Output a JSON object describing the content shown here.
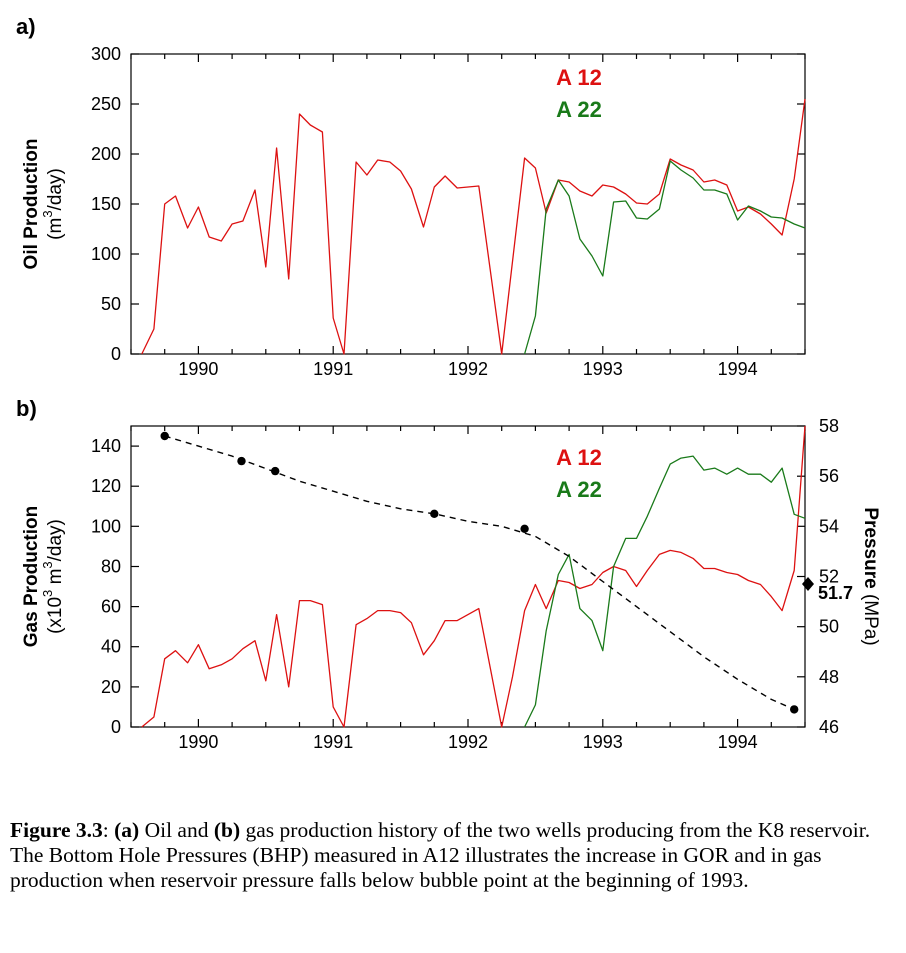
{
  "colors": {
    "a12": "#dd1111",
    "a22": "#1a7a1a",
    "pressure": "#000000",
    "frame": "#000000"
  },
  "chart_data": [
    {
      "type": "line",
      "panel_label": "a)",
      "ylabel_main": "Oil Production",
      "ylabel_unit_pre": "(m",
      "ylabel_unit_sup": "3",
      "ylabel_unit_post": "/day)",
      "xlim": [
        1989.5,
        1994.5
      ],
      "ylim": [
        0,
        300
      ],
      "yticks": [
        0,
        50,
        100,
        150,
        200,
        250,
        300
      ],
      "xticks": [
        1990,
        1991,
        1992,
        1993,
        1994
      ],
      "legend": [
        "A 12",
        "A 22"
      ],
      "legend_position": "top-center",
      "series": [
        {
          "name": "A 12",
          "x": [
            1989.58,
            1989.67,
            1989.75,
            1989.83,
            1989.92,
            1990.0,
            1990.08,
            1990.17,
            1990.25,
            1990.33,
            1990.42,
            1990.5,
            1990.58,
            1990.67,
            1990.75,
            1990.83,
            1990.92,
            1991.0,
            1991.08,
            1991.17,
            1991.25,
            1991.33,
            1991.42,
            1991.5,
            1991.58,
            1991.67,
            1991.75,
            1991.83,
            1991.92,
            1992.0,
            1992.08,
            1992.25,
            1992.42,
            1992.5,
            1992.58,
            1992.67,
            1992.75,
            1992.83,
            1992.92,
            1993.0,
            1993.08,
            1993.17,
            1993.25,
            1993.33,
            1993.42,
            1993.5,
            1993.58,
            1993.67,
            1993.75,
            1993.83,
            1993.92,
            1994.0,
            1994.08,
            1994.17,
            1994.25,
            1994.33,
            1994.42,
            1994.5
          ],
          "values": [
            0,
            25,
            150,
            158,
            126,
            147,
            117,
            113,
            130,
            133,
            164,
            87,
            206,
            75,
            240,
            229,
            222,
            36,
            0,
            192,
            179,
            194,
            192,
            183,
            165,
            127,
            167,
            178,
            166,
            167,
            168,
            0,
            196,
            186,
            141,
            174,
            172,
            163,
            158,
            169,
            167,
            160,
            151,
            150,
            160,
            195,
            189,
            184,
            172,
            174,
            169,
            143,
            147,
            140,
            130,
            119,
            175,
            255
          ]
        },
        {
          "name": "A 22",
          "x": [
            1992.42,
            1992.5,
            1992.58,
            1992.67,
            1992.75,
            1992.83,
            1992.92,
            1993.0,
            1993.08,
            1993.17,
            1993.25,
            1993.33,
            1993.42,
            1993.5,
            1993.58,
            1993.67,
            1993.75,
            1993.83,
            1993.92,
            1994.0,
            1994.08,
            1994.17,
            1994.25,
            1994.33,
            1994.42,
            1994.5
          ],
          "values": [
            0,
            38,
            145,
            174,
            158,
            115,
            98,
            78,
            152,
            153,
            136,
            135,
            145,
            193,
            184,
            176,
            164,
            164,
            160,
            134,
            148,
            143,
            137,
            136,
            130,
            126
          ]
        }
      ]
    },
    {
      "type": "line",
      "panel_label": "b)",
      "ylabel_main": "Gas Production",
      "ylabel_unit_pre": "(x10",
      "ylabel_unit_sup": "3",
      "ylabel_unit_post": " m",
      "ylabel_unit_sup2": "3",
      "ylabel_unit_post2": "/day)",
      "ylabel_right_main": "Pressure",
      "ylabel_right_unit": "(MPa)",
      "xlim": [
        1989.5,
        1994.5
      ],
      "ylim": [
        0,
        150
      ],
      "ylim_right": [
        46,
        58
      ],
      "yticks": [
        0,
        20,
        40,
        60,
        80,
        100,
        120,
        140
      ],
      "yticks_right": [
        46,
        48,
        50,
        52,
        54,
        56,
        58
      ],
      "xticks": [
        1990,
        1991,
        1992,
        1993,
        1994
      ],
      "legend": [
        "A 12",
        "A 22"
      ],
      "legend_position": "top-right",
      "annotation": "51.7",
      "annotation_value": 51.7,
      "series": [
        {
          "name": "A 12",
          "x": [
            1989.58,
            1989.67,
            1989.75,
            1989.83,
            1989.92,
            1990.0,
            1990.08,
            1990.17,
            1990.25,
            1990.33,
            1990.42,
            1990.5,
            1990.58,
            1990.67,
            1990.75,
            1990.83,
            1990.92,
            1991.0,
            1991.08,
            1991.17,
            1991.25,
            1991.33,
            1991.42,
            1991.5,
            1991.58,
            1991.67,
            1991.75,
            1991.83,
            1991.92,
            1992.0,
            1992.08,
            1992.25,
            1992.33,
            1992.42,
            1992.5,
            1992.58,
            1992.67,
            1992.75,
            1992.83,
            1992.92,
            1993.0,
            1993.08,
            1993.17,
            1993.25,
            1993.33,
            1993.42,
            1993.5,
            1993.58,
            1993.67,
            1993.75,
            1993.83,
            1993.92,
            1994.0,
            1994.08,
            1994.17,
            1994.25,
            1994.33,
            1994.42,
            1994.5
          ],
          "values": [
            0,
            5,
            34,
            38,
            32,
            41,
            29,
            31,
            34,
            39,
            43,
            23,
            56,
            20,
            63,
            63,
            61,
            10,
            0,
            51,
            54,
            58,
            58,
            57,
            52,
            36,
            43,
            53,
            53,
            56,
            59,
            0,
            25,
            58,
            71,
            59,
            73,
            72,
            69,
            71,
            77,
            80,
            78,
            70,
            78,
            86,
            88,
            87,
            84,
            79,
            79,
            77,
            76,
            73,
            71,
            65,
            58,
            78,
            150
          ]
        },
        {
          "name": "A 22",
          "x": [
            1992.42,
            1992.5,
            1992.58,
            1992.67,
            1992.75,
            1992.83,
            1992.92,
            1993.0,
            1993.08,
            1993.17,
            1993.25,
            1993.33,
            1993.42,
            1993.5,
            1993.58,
            1993.67,
            1993.75,
            1993.83,
            1993.92,
            1994.0,
            1994.08,
            1994.17,
            1994.25,
            1994.33,
            1994.42,
            1994.5
          ],
          "values": [
            0,
            11,
            48,
            76,
            86,
            59,
            53,
            38,
            80,
            94,
            94,
            105,
            119,
            131,
            134,
            135,
            128,
            129,
            126,
            129,
            126,
            126,
            122,
            129,
            106,
            104
          ]
        },
        {
          "name": "BHP",
          "axis": "right",
          "style": "dashed",
          "x": [
            1989.75,
            1990.0,
            1990.25,
            1990.5,
            1990.75,
            1991.0,
            1991.25,
            1991.5,
            1991.75,
            1992.0,
            1992.25,
            1992.5,
            1992.75,
            1993.0,
            1993.25,
            1993.5,
            1993.75,
            1994.0,
            1994.25,
            1994.42
          ],
          "values": [
            57.6,
            57.2,
            56.8,
            56.3,
            55.8,
            55.4,
            55.0,
            54.7,
            54.5,
            54.2,
            54.0,
            53.6,
            52.8,
            51.8,
            50.8,
            49.8,
            48.8,
            47.9,
            47.1,
            46.7
          ]
        },
        {
          "name": "BHP measured",
          "axis": "right",
          "style": "points",
          "x": [
            1989.75,
            1990.32,
            1990.57,
            1991.75,
            1992.42,
            1994.42
          ],
          "values": [
            57.6,
            56.6,
            56.2,
            54.5,
            53.9,
            46.7
          ]
        }
      ]
    }
  ],
  "caption": {
    "label": "Figure 3.3",
    "sep": ": ",
    "a_label": "(a)",
    "part1": " Oil and ",
    "b_label": "(b)",
    "part2": " gas production history of the two wells producing from the K8 reservoir. The Bottom Hole Pressures (BHP) measured in A12 illustrates the increase in GOR and in gas production when reservoir pressure falls below bubble point at the beginning of 1993."
  }
}
